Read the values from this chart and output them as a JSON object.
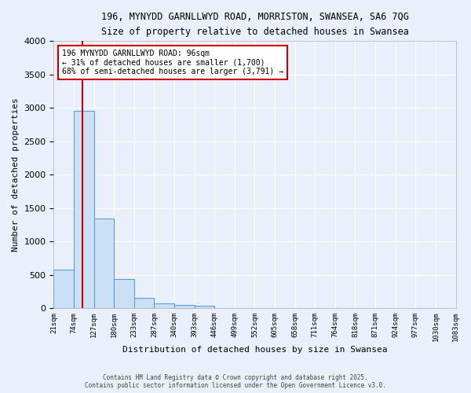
{
  "title1": "196, MYNYDD GARNLLWYD ROAD, MORRISTON, SWANSEA, SA6 7QG",
  "title2": "Size of property relative to detached houses in Swansea",
  "xlabel": "Distribution of detached houses by size in Swansea",
  "ylabel": "Number of detached properties",
  "footer1": "Contains HM Land Registry data © Crown copyright and database right 2025.",
  "footer2": "Contains public sector information licensed under the Open Government Licence v3.0.",
  "bin_labels": [
    "21sqm",
    "74sqm",
    "127sqm",
    "180sqm",
    "233sqm",
    "287sqm",
    "340sqm",
    "393sqm",
    "446sqm",
    "499sqm",
    "552sqm",
    "605sqm",
    "658sqm",
    "711sqm",
    "764sqm",
    "818sqm",
    "871sqm",
    "924sqm",
    "977sqm",
    "1030sqm",
    "1083sqm"
  ],
  "bar_heights": [
    580,
    2960,
    1340,
    430,
    155,
    75,
    45,
    35,
    0,
    0,
    0,
    0,
    0,
    0,
    0,
    0,
    0,
    0,
    0,
    0
  ],
  "bar_color": "#cce0f5",
  "bar_edge_color": "#5a9fd4",
  "background_color": "#eaf0fb",
  "grid_color": "#ffffff",
  "annotation_text": "196 MYNYDD GARNLLWYD ROAD: 96sqm\n← 31% of detached houses are smaller (1,700)\n68% of semi-detached houses are larger (3,791) →",
  "annotation_box_color": "#ffffff",
  "annotation_edge_color": "#cc0000",
  "red_line_color": "#cc0000",
  "ylim": [
    0,
    4000
  ],
  "yticks": [
    0,
    500,
    1000,
    1500,
    2000,
    2500,
    3000,
    3500,
    4000
  ]
}
